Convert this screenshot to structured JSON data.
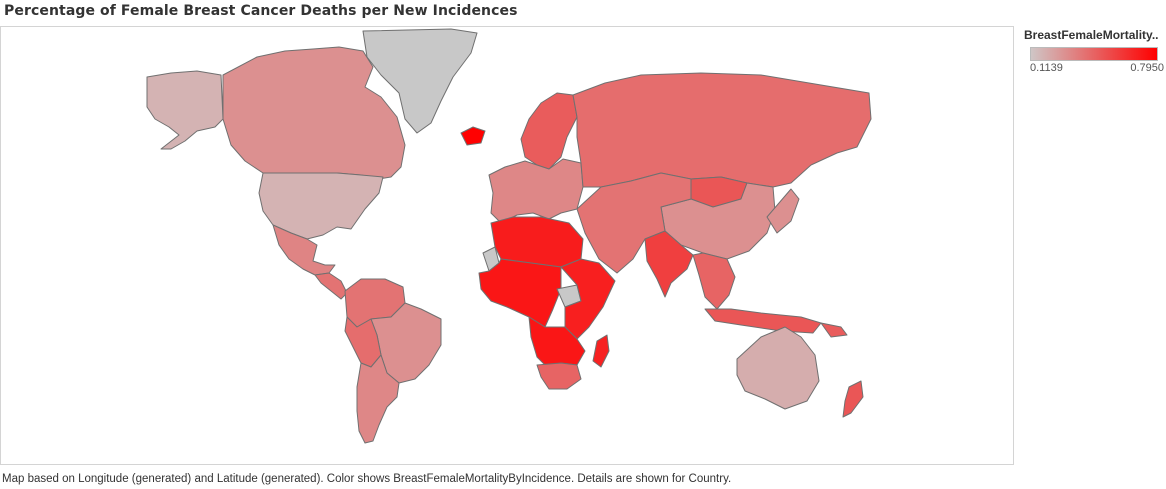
{
  "title": "Percentage of Female Breast Cancer Deaths per New Incidences",
  "legend": {
    "title": "BreastFemaleMortality..",
    "min_label": "0.1139",
    "max_label": "0.7950",
    "color_low": "#cfc6c6",
    "color_high": "#ff0000"
  },
  "footer": "Map based on Longitude (generated) and Latitude (generated).  Color shows BreastFemaleMortalityByIncidence.  Details are shown for Country.",
  "colors": {
    "no_data": "#c8c8c8",
    "border": "#707070"
  },
  "regions": [
    {
      "name": "Greenland",
      "value": null
    },
    {
      "name": "Alaska (United States)",
      "value": 0.18
    },
    {
      "name": "Canada",
      "value": 0.3
    },
    {
      "name": "United States",
      "value": 0.18
    },
    {
      "name": "Mexico",
      "value": 0.34
    },
    {
      "name": "Central America",
      "value": 0.4
    },
    {
      "name": "Colombia / Venezuela",
      "value": 0.4
    },
    {
      "name": "Brazil",
      "value": 0.3
    },
    {
      "name": "Peru / Bolivia",
      "value": 0.42
    },
    {
      "name": "Argentina / Chile",
      "value": 0.33
    },
    {
      "name": "Iceland",
      "value": 0.79
    },
    {
      "name": "Scandinavia",
      "value": 0.48
    },
    {
      "name": "Europe",
      "value": 0.33
    },
    {
      "name": "Russia",
      "value": 0.42
    },
    {
      "name": "Mongolia",
      "value": 0.5
    },
    {
      "name": "China",
      "value": 0.3
    },
    {
      "name": "Middle East / Central Asia",
      "value": 0.4
    },
    {
      "name": "India",
      "value": 0.58
    },
    {
      "name": "Southeast Asia",
      "value": 0.45
    },
    {
      "name": "Japan / Korea",
      "value": 0.3
    },
    {
      "name": "Indonesia",
      "value": 0.5
    },
    {
      "name": "Western Sahara",
      "value": null
    },
    {
      "name": "North Africa",
      "value": 0.7
    },
    {
      "name": "West / Central Africa",
      "value": 0.72
    },
    {
      "name": "South Sudan",
      "value": null
    },
    {
      "name": "East Africa",
      "value": 0.69
    },
    {
      "name": "Southern Africa",
      "value": 0.72
    },
    {
      "name": "South Africa",
      "value": 0.45
    },
    {
      "name": "Madagascar",
      "value": 0.68
    },
    {
      "name": "Australia",
      "value": 0.2
    },
    {
      "name": "New Zealand",
      "value": 0.5
    },
    {
      "name": "Pacific Islands",
      "value": 0.48
    }
  ]
}
